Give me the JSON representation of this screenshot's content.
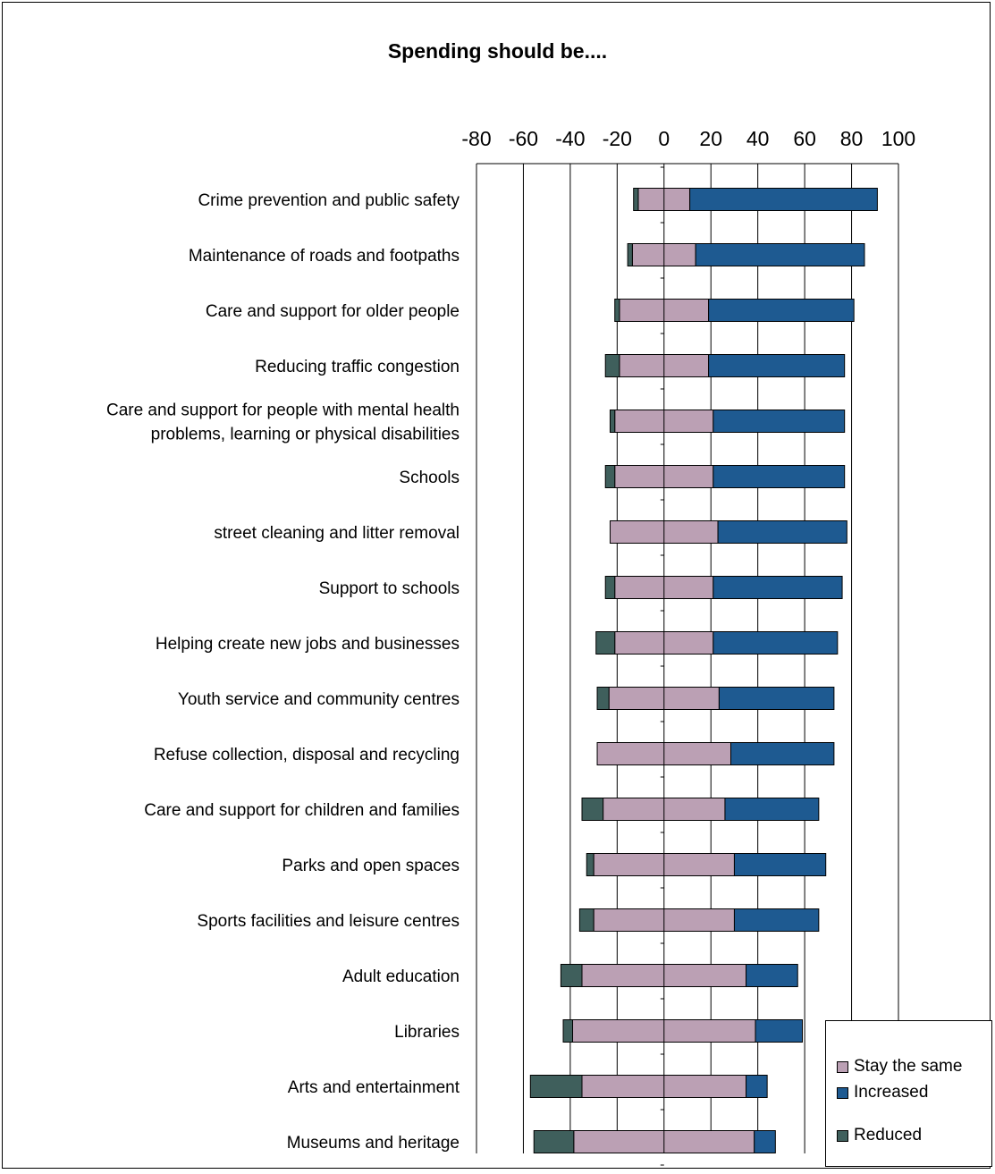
{
  "chart_data": {
    "type": "bar",
    "orientation": "horizontal",
    "stacked": "diverging",
    "title": "Spending should be....",
    "xlim": [
      -80,
      100
    ],
    "xticks": [
      -80,
      -60,
      -40,
      -20,
      0,
      20,
      40,
      60,
      80,
      100
    ],
    "grid": true,
    "legend_position": "bottom-right",
    "categories": [
      "Crime prevention and public safety",
      "Maintenance of roads and footpaths",
      "Care and support for older people",
      "Reducing traffic congestion",
      "Care and support for people with mental health problems, learning or physical disabilities",
      "Schools",
      "street cleaning and litter removal",
      "Support to schools",
      "Helping create new jobs and businesses",
      "Youth service and community centres",
      "Refuse collection, disposal and recycling",
      "Care and support for children and families",
      "Parks and open spaces",
      "Sports facilities and leisure centres",
      "Adult education",
      "Libraries",
      "Arts and entertainment",
      "Museums and heritage"
    ],
    "category_lines": [
      [
        "Crime prevention and public safety"
      ],
      [
        "Maintenance of roads and footpaths"
      ],
      [
        "Care and support for older people"
      ],
      [
        "Reducing traffic congestion"
      ],
      [
        "Care and support for people with mental health",
        "problems, learning or physical disabilities"
      ],
      [
        "Schools"
      ],
      [
        "street cleaning and litter removal"
      ],
      [
        "Support to schools"
      ],
      [
        "Helping create new jobs and businesses"
      ],
      [
        "Youth service and community centres"
      ],
      [
        "Refuse collection, disposal and recycling"
      ],
      [
        "Care and support for children and families"
      ],
      [
        "Parks and open spaces"
      ],
      [
        "Sports facilities and leisure centres"
      ],
      [
        "Adult education"
      ],
      [
        "Libraries"
      ],
      [
        "Arts and entertainment"
      ],
      [
        "Museums and heritage"
      ]
    ],
    "series": [
      {
        "name": "Stay the same",
        "color": "#bba0b4",
        "values": [
          22,
          27,
          38,
          38,
          42,
          42,
          46,
          42,
          42,
          47,
          57,
          52,
          60,
          60,
          70,
          78,
          70,
          77
        ]
      },
      {
        "name": "Increased",
        "color": "#1e5a91",
        "values": [
          80,
          72,
          62,
          58,
          56,
          56,
          55,
          55,
          53,
          49,
          44,
          40,
          39,
          36,
          22,
          20,
          9,
          9
        ]
      },
      {
        "name": "Reduced",
        "color": "#3f5f5c",
        "values": [
          2,
          2,
          2,
          6,
          2,
          4,
          0,
          4,
          8,
          5,
          0,
          9,
          3,
          6,
          9,
          4,
          22,
          17
        ]
      }
    ]
  }
}
